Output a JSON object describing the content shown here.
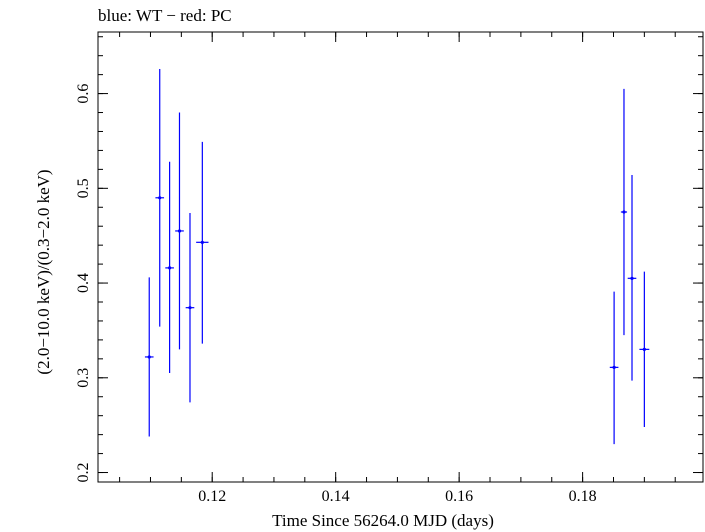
{
  "header": {
    "title": "blue: WT − red: PC"
  },
  "chart_data": {
    "type": "scatter",
    "title": "blue: WT − red: PC",
    "xlabel": "Time Since 56264.0 MJD (days)",
    "ylabel": "(2.0−10.0 keV)/(0.3−2.0 keV)",
    "xlim": [
      0.1015,
      0.1995
    ],
    "ylim": [
      0.19,
      0.665
    ],
    "xticks_major": [
      0.12,
      0.14,
      0.16,
      0.18
    ],
    "xtick_labels": [
      "0.12",
      "0.14",
      "0.16",
      "0.18"
    ],
    "xticks_minor_step": 0.005,
    "yticks_major": [
      0.2,
      0.3,
      0.4,
      0.5,
      0.6
    ],
    "ytick_labels": [
      "0.2",
      "0.3",
      "0.4",
      "0.5",
      "0.6"
    ],
    "yticks_minor_step": 0.02,
    "grid": false,
    "series": [
      {
        "color": "#0000ff",
        "points": [
          {
            "x": 0.1098,
            "xerr": 0.0007,
            "y": 0.322,
            "ylo": 0.238,
            "yhi": 0.406
          },
          {
            "x": 0.1115,
            "xerr": 0.0007,
            "y": 0.49,
            "ylo": 0.354,
            "yhi": 0.626
          },
          {
            "x": 0.1131,
            "xerr": 0.0007,
            "y": 0.416,
            "ylo": 0.305,
            "yhi": 0.528
          },
          {
            "x": 0.1147,
            "xerr": 0.0007,
            "y": 0.455,
            "ylo": 0.33,
            "yhi": 0.58
          },
          {
            "x": 0.1164,
            "xerr": 0.0007,
            "y": 0.374,
            "ylo": 0.274,
            "yhi": 0.474
          },
          {
            "x": 0.1184,
            "xerr": 0.001,
            "y": 0.443,
            "ylo": 0.336,
            "yhi": 0.549
          },
          {
            "x": 0.1851,
            "xerr": 0.0007,
            "y": 0.311,
            "ylo": 0.23,
            "yhi": 0.391
          },
          {
            "x": 0.1867,
            "xerr": 0.0005,
            "y": 0.475,
            "ylo": 0.345,
            "yhi": 0.605
          },
          {
            "x": 0.188,
            "xerr": 0.0007,
            "y": 0.405,
            "ylo": 0.297,
            "yhi": 0.514
          },
          {
            "x": 0.19,
            "xerr": 0.0008,
            "y": 0.33,
            "ylo": 0.248,
            "yhi": 0.412
          }
        ]
      }
    ]
  }
}
